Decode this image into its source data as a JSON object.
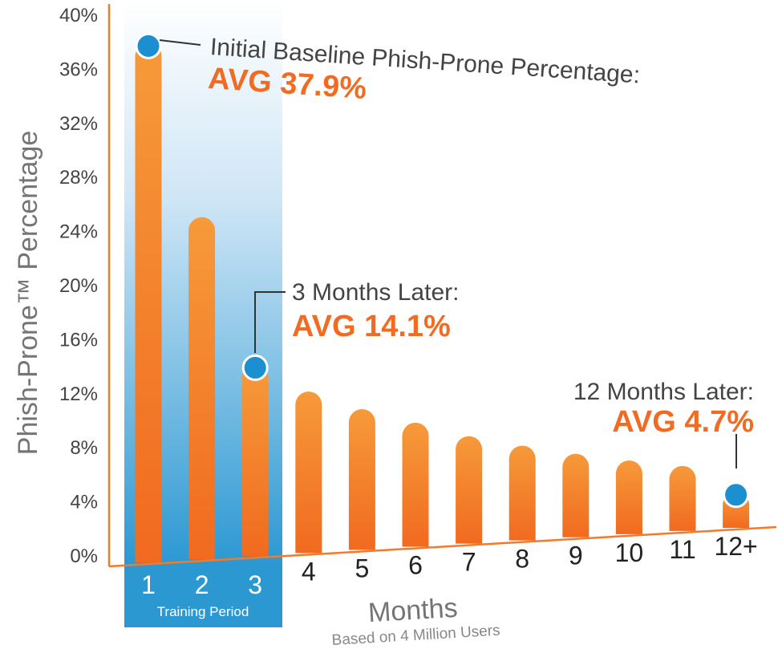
{
  "chart_data": {
    "type": "bar",
    "ylabel": "Phish-Prone™ Percentage",
    "xlabel": "Months",
    "subtitle": "Based on 4 Million Users",
    "ylim": [
      0,
      40
    ],
    "yticks": [
      "0%",
      "4%",
      "8%",
      "12%",
      "16%",
      "20%",
      "24%",
      "28%",
      "32%",
      "36%",
      "40%"
    ],
    "categories": [
      "1",
      "2",
      "3",
      "4",
      "5",
      "6",
      "7",
      "8",
      "9",
      "10",
      "11",
      "12+"
    ],
    "values": [
      37.9,
      25.0,
      14.1,
      12.1,
      10.8,
      9.8,
      8.8,
      8.1,
      7.5,
      7.0,
      6.6,
      4.7
    ],
    "training_period": {
      "label": "Training Period",
      "months": [
        "1",
        "2",
        "3"
      ]
    },
    "annotations": [
      {
        "label": "Initial Baseline Phish-Prone Percentage:",
        "value": "AVG 37.9%",
        "month_index": 0
      },
      {
        "label": "3 Months Later:",
        "value": "AVG 14.1%",
        "month_index": 2
      },
      {
        "label": "12 Months Later:",
        "value": "AVG 4.7%",
        "month_index": 11
      }
    ],
    "colors": {
      "bar": "#f47a2a",
      "marker": "#1b8fcf",
      "accent": "#f26b22",
      "training": "#2b98d2",
      "axis": "#f47a2a"
    }
  }
}
